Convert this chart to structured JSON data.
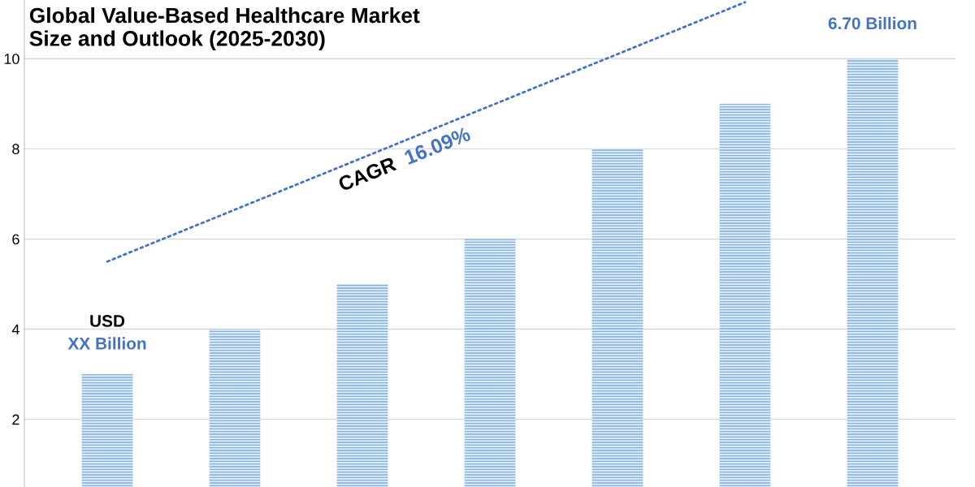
{
  "chart_data": {
    "type": "bar",
    "title": "Global Value-Based Healthcare Market\nSize and Outlook (2025-2030)",
    "categories": [
      null,
      null,
      null,
      null,
      null,
      null,
      null
    ],
    "series": [
      {
        "color": "#7fb0e0",
        "values": [
          3,
          4,
          5,
          6,
          8,
          9,
          10
        ]
      },
      {
        "type": "line",
        "color": "#4472c4",
        "values": [
          5.5,
          6.65,
          7.8,
          8.95,
          10.1,
          11.25,
          null
        ],
        "line_style": "dotted"
      }
    ],
    "annotations": [
      "USD",
      "XX Billion",
      "6.70 Billion",
      "CAGR 16.09%"
    ],
    "ylim": [
      0.5,
      11.3
    ],
    "yticks": [
      2,
      4,
      6,
      8,
      10
    ],
    "grid": "y",
    "tick_labels": "y"
  }
}
